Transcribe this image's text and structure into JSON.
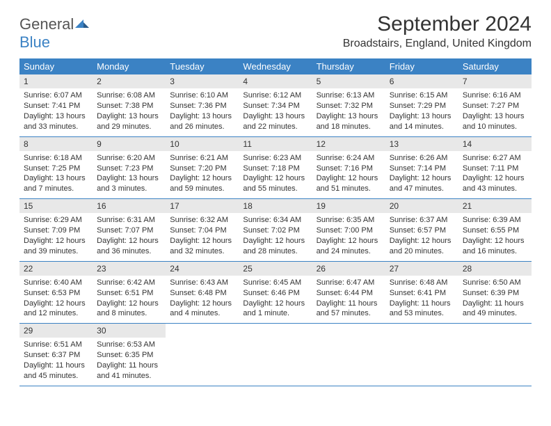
{
  "logo": {
    "text1": "General",
    "text2": "Blue"
  },
  "title": "September 2024",
  "location": "Broadstairs, England, United Kingdom",
  "colors": {
    "header_bg": "#3b82c4",
    "header_text": "#ffffff",
    "daynum_bg": "#e8e8e8",
    "text": "#333333",
    "rule": "#3b82c4",
    "background": "#ffffff"
  },
  "day_labels": [
    "Sunday",
    "Monday",
    "Tuesday",
    "Wednesday",
    "Thursday",
    "Friday",
    "Saturday"
  ],
  "weeks": [
    [
      {
        "n": "1",
        "sr": "Sunrise: 6:07 AM",
        "ss": "Sunset: 7:41 PM",
        "d1": "Daylight: 13 hours",
        "d2": "and 33 minutes."
      },
      {
        "n": "2",
        "sr": "Sunrise: 6:08 AM",
        "ss": "Sunset: 7:38 PM",
        "d1": "Daylight: 13 hours",
        "d2": "and 29 minutes."
      },
      {
        "n": "3",
        "sr": "Sunrise: 6:10 AM",
        "ss": "Sunset: 7:36 PM",
        "d1": "Daylight: 13 hours",
        "d2": "and 26 minutes."
      },
      {
        "n": "4",
        "sr": "Sunrise: 6:12 AM",
        "ss": "Sunset: 7:34 PM",
        "d1": "Daylight: 13 hours",
        "d2": "and 22 minutes."
      },
      {
        "n": "5",
        "sr": "Sunrise: 6:13 AM",
        "ss": "Sunset: 7:32 PM",
        "d1": "Daylight: 13 hours",
        "d2": "and 18 minutes."
      },
      {
        "n": "6",
        "sr": "Sunrise: 6:15 AM",
        "ss": "Sunset: 7:29 PM",
        "d1": "Daylight: 13 hours",
        "d2": "and 14 minutes."
      },
      {
        "n": "7",
        "sr": "Sunrise: 6:16 AM",
        "ss": "Sunset: 7:27 PM",
        "d1": "Daylight: 13 hours",
        "d2": "and 10 minutes."
      }
    ],
    [
      {
        "n": "8",
        "sr": "Sunrise: 6:18 AM",
        "ss": "Sunset: 7:25 PM",
        "d1": "Daylight: 13 hours",
        "d2": "and 7 minutes."
      },
      {
        "n": "9",
        "sr": "Sunrise: 6:20 AM",
        "ss": "Sunset: 7:23 PM",
        "d1": "Daylight: 13 hours",
        "d2": "and 3 minutes."
      },
      {
        "n": "10",
        "sr": "Sunrise: 6:21 AM",
        "ss": "Sunset: 7:20 PM",
        "d1": "Daylight: 12 hours",
        "d2": "and 59 minutes."
      },
      {
        "n": "11",
        "sr": "Sunrise: 6:23 AM",
        "ss": "Sunset: 7:18 PM",
        "d1": "Daylight: 12 hours",
        "d2": "and 55 minutes."
      },
      {
        "n": "12",
        "sr": "Sunrise: 6:24 AM",
        "ss": "Sunset: 7:16 PM",
        "d1": "Daylight: 12 hours",
        "d2": "and 51 minutes."
      },
      {
        "n": "13",
        "sr": "Sunrise: 6:26 AM",
        "ss": "Sunset: 7:14 PM",
        "d1": "Daylight: 12 hours",
        "d2": "and 47 minutes."
      },
      {
        "n": "14",
        "sr": "Sunrise: 6:27 AM",
        "ss": "Sunset: 7:11 PM",
        "d1": "Daylight: 12 hours",
        "d2": "and 43 minutes."
      }
    ],
    [
      {
        "n": "15",
        "sr": "Sunrise: 6:29 AM",
        "ss": "Sunset: 7:09 PM",
        "d1": "Daylight: 12 hours",
        "d2": "and 39 minutes."
      },
      {
        "n": "16",
        "sr": "Sunrise: 6:31 AM",
        "ss": "Sunset: 7:07 PM",
        "d1": "Daylight: 12 hours",
        "d2": "and 36 minutes."
      },
      {
        "n": "17",
        "sr": "Sunrise: 6:32 AM",
        "ss": "Sunset: 7:04 PM",
        "d1": "Daylight: 12 hours",
        "d2": "and 32 minutes."
      },
      {
        "n": "18",
        "sr": "Sunrise: 6:34 AM",
        "ss": "Sunset: 7:02 PM",
        "d1": "Daylight: 12 hours",
        "d2": "and 28 minutes."
      },
      {
        "n": "19",
        "sr": "Sunrise: 6:35 AM",
        "ss": "Sunset: 7:00 PM",
        "d1": "Daylight: 12 hours",
        "d2": "and 24 minutes."
      },
      {
        "n": "20",
        "sr": "Sunrise: 6:37 AM",
        "ss": "Sunset: 6:57 PM",
        "d1": "Daylight: 12 hours",
        "d2": "and 20 minutes."
      },
      {
        "n": "21",
        "sr": "Sunrise: 6:39 AM",
        "ss": "Sunset: 6:55 PM",
        "d1": "Daylight: 12 hours",
        "d2": "and 16 minutes."
      }
    ],
    [
      {
        "n": "22",
        "sr": "Sunrise: 6:40 AM",
        "ss": "Sunset: 6:53 PM",
        "d1": "Daylight: 12 hours",
        "d2": "and 12 minutes."
      },
      {
        "n": "23",
        "sr": "Sunrise: 6:42 AM",
        "ss": "Sunset: 6:51 PM",
        "d1": "Daylight: 12 hours",
        "d2": "and 8 minutes."
      },
      {
        "n": "24",
        "sr": "Sunrise: 6:43 AM",
        "ss": "Sunset: 6:48 PM",
        "d1": "Daylight: 12 hours",
        "d2": "and 4 minutes."
      },
      {
        "n": "25",
        "sr": "Sunrise: 6:45 AM",
        "ss": "Sunset: 6:46 PM",
        "d1": "Daylight: 12 hours",
        "d2": "and 1 minute."
      },
      {
        "n": "26",
        "sr": "Sunrise: 6:47 AM",
        "ss": "Sunset: 6:44 PM",
        "d1": "Daylight: 11 hours",
        "d2": "and 57 minutes."
      },
      {
        "n": "27",
        "sr": "Sunrise: 6:48 AM",
        "ss": "Sunset: 6:41 PM",
        "d1": "Daylight: 11 hours",
        "d2": "and 53 minutes."
      },
      {
        "n": "28",
        "sr": "Sunrise: 6:50 AM",
        "ss": "Sunset: 6:39 PM",
        "d1": "Daylight: 11 hours",
        "d2": "and 49 minutes."
      }
    ],
    [
      {
        "n": "29",
        "sr": "Sunrise: 6:51 AM",
        "ss": "Sunset: 6:37 PM",
        "d1": "Daylight: 11 hours",
        "d2": "and 45 minutes."
      },
      {
        "n": "30",
        "sr": "Sunrise: 6:53 AM",
        "ss": "Sunset: 6:35 PM",
        "d1": "Daylight: 11 hours",
        "d2": "and 41 minutes."
      },
      {
        "empty": true
      },
      {
        "empty": true
      },
      {
        "empty": true
      },
      {
        "empty": true
      },
      {
        "empty": true
      }
    ]
  ]
}
